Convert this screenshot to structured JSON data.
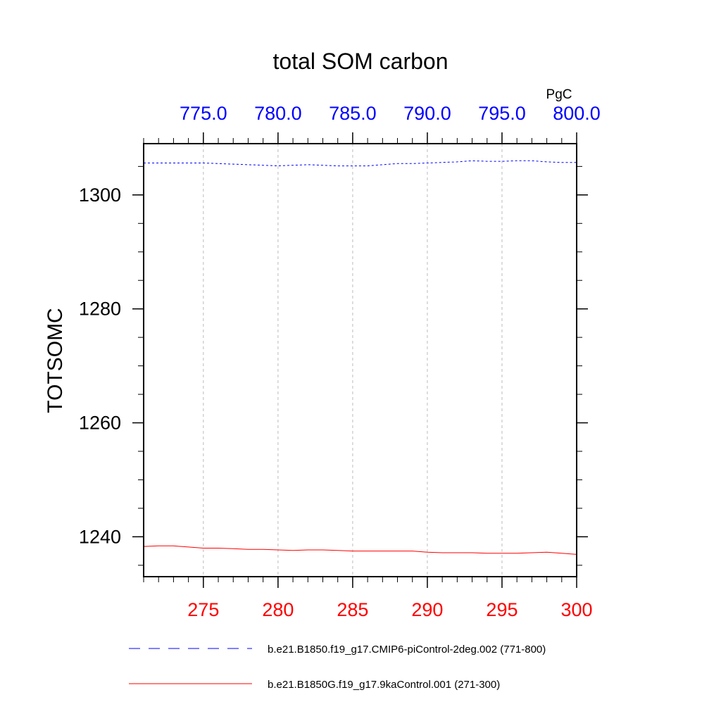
{
  "chart_data": {
    "type": "line",
    "title": "total SOM carbon",
    "ylabel": "TOTSOMC",
    "units": "PgC",
    "ylim": [
      1233,
      1309
    ],
    "yticks": [
      1240,
      1260,
      1280,
      1300
    ],
    "grid": "vertical dashed at major bottom ticks",
    "bottom_axis": {
      "color": "#ff0000",
      "xlim": [
        271,
        300
      ],
      "ticks": [
        275,
        280,
        285,
        290,
        295,
        300
      ],
      "tick_labels": [
        "275",
        "280",
        "285",
        "290",
        "295",
        "300"
      ]
    },
    "top_axis": {
      "color": "#0000ff",
      "xlim": [
        771,
        800
      ],
      "ticks": [
        775,
        780,
        785,
        790,
        795,
        800
      ],
      "tick_labels": [
        "775.0",
        "780.0",
        "785.0",
        "790.0",
        "795.0",
        "800.0"
      ]
    },
    "series": [
      {
        "name": "b.e21.B1850.f19_g17.CMIP6-piControl-2deg.002 (771-800)",
        "axis": "top",
        "color": "#0000ff",
        "dash": "dashed",
        "x": [
          771,
          772,
          773,
          774,
          775,
          776,
          777,
          778,
          779,
          780,
          781,
          782,
          783,
          784,
          785,
          786,
          787,
          788,
          789,
          790,
          791,
          792,
          793,
          794,
          795,
          796,
          797,
          798,
          799,
          800
        ],
        "values": [
          1305.6,
          1305.6,
          1305.6,
          1305.6,
          1305.6,
          1305.5,
          1305.4,
          1305.3,
          1305.2,
          1305.1,
          1305.2,
          1305.3,
          1305.2,
          1305.1,
          1305.1,
          1305.1,
          1305.3,
          1305.5,
          1305.5,
          1305.6,
          1305.7,
          1305.8,
          1306.0,
          1305.9,
          1305.9,
          1306.0,
          1306.0,
          1305.8,
          1305.7,
          1305.7
        ]
      },
      {
        "name": "b.e21.B1850G.f19_g17.9kaControl.001 (271-300)",
        "axis": "bottom",
        "color": "#ff0000",
        "dash": "solid",
        "x": [
          271,
          272,
          273,
          274,
          275,
          276,
          277,
          278,
          279,
          280,
          281,
          282,
          283,
          284,
          285,
          286,
          287,
          288,
          289,
          290,
          291,
          292,
          293,
          294,
          295,
          296,
          297,
          298,
          299,
          300
        ],
        "values": [
          1238.3,
          1238.4,
          1238.4,
          1238.2,
          1238.0,
          1238.0,
          1237.9,
          1237.8,
          1237.8,
          1237.7,
          1237.6,
          1237.7,
          1237.7,
          1237.6,
          1237.5,
          1237.5,
          1237.5,
          1237.5,
          1237.5,
          1237.3,
          1237.2,
          1237.2,
          1237.2,
          1237.1,
          1237.1,
          1237.1,
          1237.2,
          1237.3,
          1237.1,
          1236.9
        ]
      }
    ],
    "legend": "below plot"
  }
}
